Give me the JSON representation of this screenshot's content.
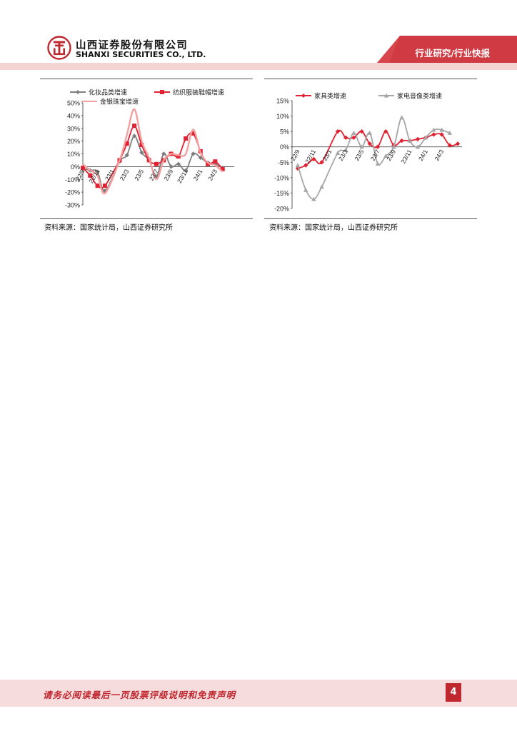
{
  "header": {
    "company_cn": "山西证券股份有限公司",
    "company_en": "SHANXI SECURITIES CO., LTD.",
    "report_type": "行业研究/行业快报",
    "accent_color": "#c0282f",
    "band_color": "#f4d3d3"
  },
  "chart_data": [
    {
      "type": "line",
      "categories": [
        "22/9",
        "22/10",
        "22/11",
        "22/12",
        "23/1",
        "23/2",
        "23/3",
        "23/4",
        "23/5",
        "23/6",
        "23/7",
        "23/8",
        "23/9",
        "23/10",
        "23/11",
        "23/12",
        "24/1",
        "24/2",
        "24/3",
        "24/4",
        "24/5"
      ],
      "tick_labels": [
        "22/9",
        "22/11",
        "23/1",
        "23/3",
        "23/5",
        "23/7",
        "23/9",
        "23/11",
        "24/1",
        "24/3"
      ],
      "series": [
        {
          "name": "化妆品类增速",
          "color": "#7f7f7f",
          "marker": "diamond",
          "values": [
            -1,
            -3,
            -4,
            -19,
            null,
            4,
            9,
            24,
            11,
            5,
            -8,
            10,
            0,
            2,
            -3,
            10,
            7,
            3,
            2,
            -1,
            null
          ]
        },
        {
          "name": "纺织服装鞋帽增速",
          "color": "#e02232",
          "marker": "square",
          "values": [
            -1,
            -7,
            -15,
            -15,
            null,
            5,
            18,
            32,
            17,
            5,
            2,
            5,
            10,
            8,
            22,
            26,
            12,
            2,
            4,
            -2,
            null
          ]
        },
        {
          "name": "金银珠宝增速",
          "color": "#f4a0a0",
          "marker": "none",
          "values": [
            2,
            -3,
            -7,
            -21,
            null,
            5,
            25,
            45,
            20,
            7,
            -10,
            5,
            10,
            9,
            10,
            29,
            11,
            3,
            1,
            -4,
            null
          ]
        }
      ],
      "y_ticks": [
        "50%",
        "40%",
        "30%",
        "20%",
        "10%",
        "0%",
        "-10%",
        "-20%",
        "-30%"
      ],
      "ylim": [
        -30,
        50
      ],
      "legend": "top"
    },
    {
      "type": "line",
      "categories": [
        "22/9",
        "22/10",
        "22/11",
        "22/12",
        "23/1",
        "23/2",
        "23/3",
        "23/4",
        "23/5",
        "23/6",
        "23/7",
        "23/8",
        "23/9",
        "23/10",
        "23/11",
        "23/12",
        "24/1",
        "24/2",
        "24/3",
        "24/4",
        "24/5"
      ],
      "tick_labels": [
        "22/9",
        "22/11",
        "23/1",
        "23/3",
        "23/5",
        "23/7",
        "23/9",
        "23/11",
        "24/1",
        "24/3"
      ],
      "series": [
        {
          "name": "家具类增速",
          "color": "#e02232",
          "marker": "diamond",
          "values": [
            -7,
            -6,
            -4,
            -5,
            null,
            5,
            3,
            3,
            5,
            1,
            0,
            5,
            0.5,
            2,
            2,
            2.5,
            3,
            4,
            4,
            0.5,
            1
          ]
        },
        {
          "name": "家电音像类增速",
          "color": "#a6a6a6",
          "marker": "triangle",
          "values": [
            -6,
            -14,
            -17,
            -13,
            null,
            -2,
            -1,
            4.5,
            0,
            4.5,
            -5.5,
            -3,
            0,
            9.5,
            2,
            0,
            3,
            5.5,
            5.5,
            4.5,
            null
          ]
        }
      ],
      "y_ticks": [
        "15%",
        "10%",
        "5%",
        "0%",
        "-5%",
        "-10%",
        "-15%",
        "-20%"
      ],
      "ylim": [
        -20,
        15
      ],
      "legend": "top"
    }
  ],
  "sources": {
    "left": "资料来源：国家统计局，山西证券研究所",
    "right": "资料来源：国家统计局，山西证券研究所"
  },
  "footer": {
    "disclaimer": "请务必阅读最后一页股票评级说明和免责声明",
    "page_number": "4"
  }
}
